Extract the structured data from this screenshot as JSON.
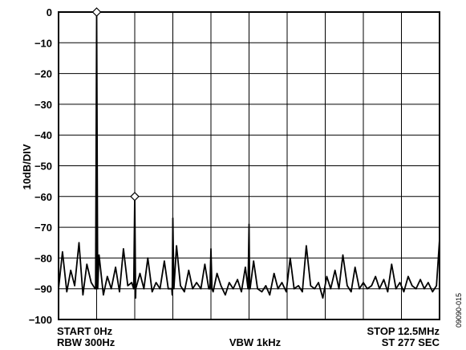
{
  "chart_data": {
    "type": "line",
    "title": "",
    "ylabel": "10dB/DIV",
    "xlabel": "",
    "ylim": [
      -100,
      0
    ],
    "xlim": [
      0,
      12.5
    ],
    "x_unit": "MHz",
    "grid": true,
    "y_ticks": [
      "0",
      "−10",
      "−20",
      "−30",
      "−40",
      "−50",
      "−60",
      "−70",
      "−80",
      "−90",
      "−100"
    ],
    "y_tick_values": [
      0,
      -10,
      -20,
      -30,
      -40,
      -50,
      -60,
      -70,
      -80,
      -90,
      -100
    ],
    "x_divisions": 10,
    "noise_floor_db": -90,
    "series": [
      {
        "x": [
          0.0,
          0.13,
          0.27,
          0.4,
          0.53,
          0.67,
          0.8,
          0.93,
          1.07,
          1.2,
          1.33,
          1.47,
          1.6,
          1.73,
          1.87,
          2.0,
          2.13,
          2.27,
          2.4,
          2.53,
          2.67,
          2.8,
          2.93,
          3.07,
          3.2,
          3.33,
          3.47,
          3.6,
          3.73,
          3.87,
          4.0,
          4.13,
          4.27,
          4.4,
          4.53,
          4.67,
          4.8,
          4.93,
          5.07,
          5.2,
          5.33,
          5.47,
          5.6,
          5.73,
          5.87,
          6.0,
          6.13,
          6.27,
          6.4,
          6.53,
          6.67,
          6.8,
          6.93,
          7.07,
          7.2,
          7.33,
          7.47,
          7.6,
          7.73,
          7.87,
          8.0,
          8.13,
          8.27,
          8.4,
          8.53,
          8.67,
          8.8,
          8.93,
          9.07,
          9.2,
          9.33,
          9.47,
          9.6,
          9.73,
          9.87,
          10.0,
          10.13,
          10.27,
          10.4,
          10.53,
          10.67,
          10.8,
          10.93,
          11.07,
          11.2,
          11.33,
          11.47,
          11.6,
          11.73,
          11.87,
          12.0,
          12.13,
          12.27,
          12.4,
          12.5
        ],
        "y": [
          -90,
          -78,
          -91,
          -84,
          -89,
          -75,
          -92,
          -82,
          -88,
          -90,
          -79,
          -92,
          -86,
          -90,
          -83,
          -91,
          -77,
          -89,
          -88,
          -93,
          -85,
          -90,
          -80,
          -91,
          -88,
          -90,
          -81,
          -90,
          -92,
          -76,
          -89,
          -91,
          -84,
          -90,
          -88,
          -90,
          -82,
          -90,
          -91,
          -85,
          -89,
          -92,
          -88,
          -90,
          -87,
          -91,
          -83,
          -90,
          -81,
          -90,
          -91,
          -89,
          -92,
          -85,
          -90,
          -88,
          -91,
          -80,
          -90,
          -89,
          -91,
          -76,
          -89,
          -90,
          -88,
          -93,
          -86,
          -90,
          -84,
          -90,
          -79,
          -89,
          -91,
          -83,
          -90,
          -88,
          -90,
          -89,
          -86,
          -90,
          -87,
          -91,
          -82,
          -90,
          -88,
          -91,
          -86,
          -89,
          -90,
          -87,
          -90,
          -88,
          -91,
          -89,
          -74
        ]
      }
    ],
    "peaks": [
      {
        "x": 1.25,
        "y": 0,
        "marker": "diamond"
      },
      {
        "x": 2.5,
        "y": -60,
        "marker": "diamond"
      },
      {
        "x": 3.75,
        "y": -67,
        "marker": "none"
      },
      {
        "x": 5.0,
        "y": -77,
        "marker": "none"
      },
      {
        "x": 6.25,
        "y": -69,
        "marker": "none"
      }
    ]
  },
  "footer": {
    "start": "START 0Hz",
    "rbw": "RBW 300Hz",
    "vbw": "VBW 1kHz",
    "stop": "STOP 12.5MHz",
    "st": "ST 277 SEC"
  },
  "figure_code": "09090-015"
}
